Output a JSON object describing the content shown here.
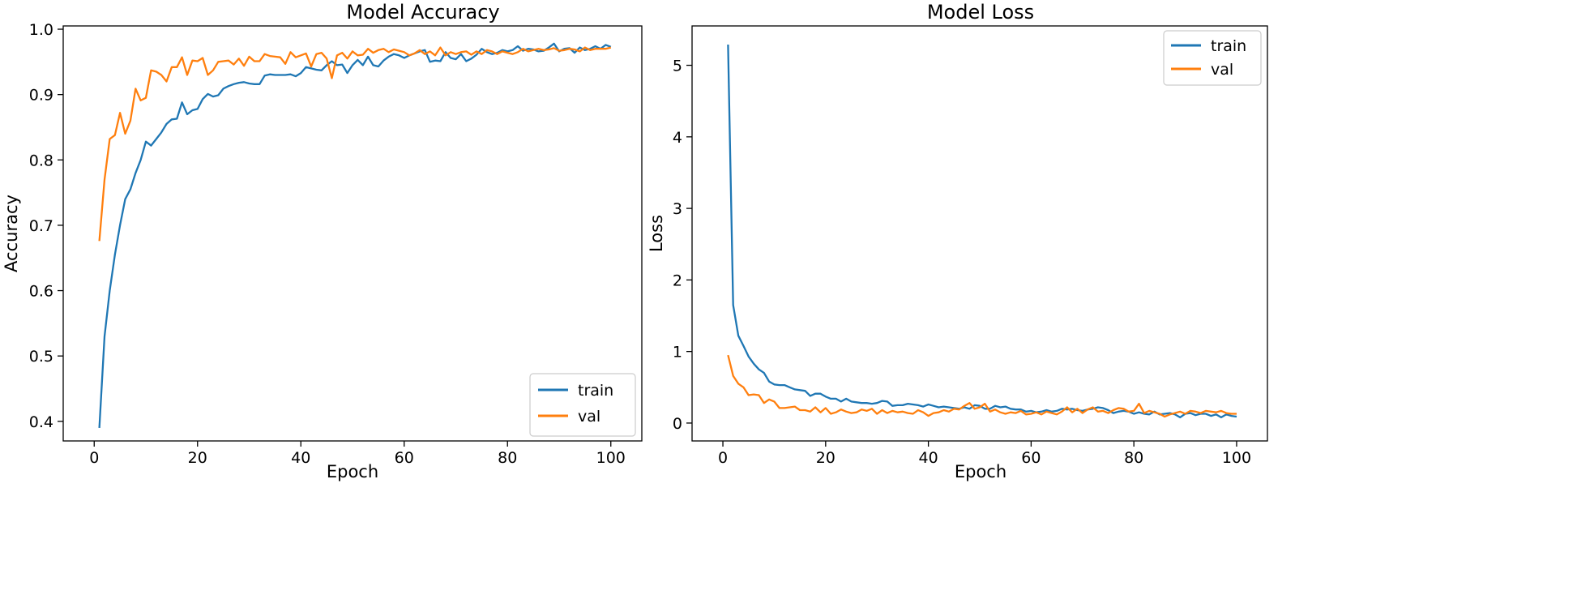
{
  "chart_data": [
    {
      "type": "line",
      "title": "Model Accuracy",
      "xlabel": "Epoch",
      "ylabel": "Accuracy",
      "xlim": [
        -6,
        106
      ],
      "ylim": [
        0.37,
        1.005
      ],
      "xticks": [
        0,
        20,
        40,
        60,
        80,
        100
      ],
      "yticks": [
        0.4,
        0.5,
        0.6,
        0.7,
        0.8,
        0.9,
        1.0
      ],
      "ytick_labels": [
        "0.4",
        "0.5",
        "0.6",
        "0.7",
        "0.8",
        "0.9",
        "1.0"
      ],
      "grid": false,
      "legend_position": "lower-right",
      "series": [
        {
          "name": "train",
          "color": "#1f77b4",
          "x": [
            1,
            2,
            3,
            4,
            5,
            6,
            7,
            8,
            9,
            10,
            11,
            12,
            13,
            14,
            15,
            16,
            17,
            18,
            19,
            20,
            21,
            22,
            23,
            24,
            25,
            26,
            27,
            28,
            29,
            30,
            31,
            32,
            33,
            34,
            35,
            36,
            37,
            38,
            39,
            40,
            41,
            42,
            43,
            44,
            45,
            46,
            47,
            48,
            49,
            50,
            51,
            52,
            53,
            54,
            55,
            56,
            57,
            58,
            59,
            60,
            61,
            62,
            63,
            64,
            65,
            66,
            67,
            68,
            69,
            70,
            71,
            72,
            73,
            74,
            75,
            76,
            77,
            78,
            79,
            80,
            81,
            82,
            83,
            84,
            85,
            86,
            87,
            88,
            89,
            90,
            91,
            92,
            93,
            94,
            95,
            96,
            97,
            98,
            99,
            100
          ],
          "values": [
            0.39,
            0.53,
            0.6,
            0.655,
            0.7,
            0.74,
            0.755,
            0.78,
            0.8,
            0.828,
            0.822,
            0.832,
            0.842,
            0.855,
            0.862,
            0.863,
            0.888,
            0.87,
            0.876,
            0.878,
            0.893,
            0.901,
            0.897,
            0.899,
            0.909,
            0.913,
            0.916,
            0.918,
            0.919,
            0.917,
            0.916,
            0.916,
            0.929,
            0.931,
            0.93,
            0.93,
            0.93,
            0.931,
            0.928,
            0.933,
            0.942,
            0.94,
            0.938,
            0.937,
            0.945,
            0.951,
            0.945,
            0.946,
            0.933,
            0.945,
            0.953,
            0.945,
            0.958,
            0.945,
            0.943,
            0.952,
            0.958,
            0.962,
            0.96,
            0.956,
            0.96,
            0.963,
            0.966,
            0.968,
            0.95,
            0.952,
            0.951,
            0.965,
            0.956,
            0.954,
            0.962,
            0.951,
            0.955,
            0.961,
            0.97,
            0.965,
            0.962,
            0.964,
            0.968,
            0.966,
            0.968,
            0.974,
            0.967,
            0.97,
            0.969,
            0.966,
            0.967,
            0.972,
            0.978,
            0.966,
            0.97,
            0.971,
            0.964,
            0.972,
            0.968,
            0.97,
            0.974,
            0.97,
            0.976,
            0.973
          ]
        },
        {
          "name": "val",
          "color": "#ff7f0e",
          "x": [
            1,
            2,
            3,
            4,
            5,
            6,
            7,
            8,
            9,
            10,
            11,
            12,
            13,
            14,
            15,
            16,
            17,
            18,
            19,
            20,
            21,
            22,
            23,
            24,
            25,
            26,
            27,
            28,
            29,
            30,
            31,
            32,
            33,
            34,
            35,
            36,
            37,
            38,
            39,
            40,
            41,
            42,
            43,
            44,
            45,
            46,
            47,
            48,
            49,
            50,
            51,
            52,
            53,
            54,
            55,
            56,
            57,
            58,
            59,
            60,
            61,
            62,
            63,
            64,
            65,
            66,
            67,
            68,
            69,
            70,
            71,
            72,
            73,
            74,
            75,
            76,
            77,
            78,
            79,
            80,
            81,
            82,
            83,
            84,
            85,
            86,
            87,
            88,
            89,
            90,
            91,
            92,
            93,
            94,
            95,
            96,
            97,
            98,
            99,
            100
          ],
          "values": [
            0.676,
            0.77,
            0.832,
            0.838,
            0.872,
            0.84,
            0.86,
            0.909,
            0.891,
            0.895,
            0.937,
            0.935,
            0.93,
            0.92,
            0.942,
            0.942,
            0.957,
            0.93,
            0.952,
            0.951,
            0.956,
            0.93,
            0.937,
            0.95,
            0.951,
            0.952,
            0.946,
            0.955,
            0.944,
            0.958,
            0.951,
            0.951,
            0.962,
            0.959,
            0.958,
            0.957,
            0.947,
            0.965,
            0.957,
            0.96,
            0.963,
            0.943,
            0.962,
            0.964,
            0.955,
            0.925,
            0.96,
            0.964,
            0.955,
            0.966,
            0.96,
            0.961,
            0.97,
            0.964,
            0.968,
            0.97,
            0.965,
            0.969,
            0.967,
            0.965,
            0.96,
            0.963,
            0.968,
            0.962,
            0.966,
            0.96,
            0.972,
            0.96,
            0.965,
            0.962,
            0.965,
            0.966,
            0.961,
            0.966,
            0.962,
            0.968,
            0.966,
            0.962,
            0.966,
            0.964,
            0.962,
            0.965,
            0.97,
            0.966,
            0.968,
            0.97,
            0.968,
            0.969,
            0.971,
            0.967,
            0.968,
            0.97,
            0.969,
            0.966,
            0.972,
            0.968,
            0.97,
            0.97,
            0.97,
            0.972
          ]
        }
      ]
    },
    {
      "type": "line",
      "title": "Model Loss",
      "xlabel": "Epoch",
      "ylabel": "Loss",
      "xlim": [
        -6,
        106
      ],
      "ylim": [
        -0.25,
        5.55
      ],
      "xticks": [
        0,
        20,
        40,
        60,
        80,
        100
      ],
      "yticks": [
        0,
        1,
        2,
        3,
        4,
        5
      ],
      "ytick_labels": [
        "0",
        "1",
        "2",
        "3",
        "4",
        "5"
      ],
      "grid": false,
      "legend_position": "upper-right",
      "series": [
        {
          "name": "train",
          "color": "#1f77b4",
          "x": [
            1,
            2,
            3,
            4,
            5,
            6,
            7,
            8,
            9,
            10,
            11,
            12,
            13,
            14,
            15,
            16,
            17,
            18,
            19,
            20,
            21,
            22,
            23,
            24,
            25,
            26,
            27,
            28,
            29,
            30,
            31,
            32,
            33,
            34,
            35,
            36,
            37,
            38,
            39,
            40,
            41,
            42,
            43,
            44,
            45,
            46,
            47,
            48,
            49,
            50,
            51,
            52,
            53,
            54,
            55,
            56,
            57,
            58,
            59,
            60,
            61,
            62,
            63,
            64,
            65,
            66,
            67,
            68,
            69,
            70,
            71,
            72,
            73,
            74,
            75,
            76,
            77,
            78,
            79,
            80,
            81,
            82,
            83,
            84,
            85,
            86,
            87,
            88,
            89,
            90,
            91,
            92,
            93,
            94,
            95,
            96,
            97,
            98,
            99,
            100
          ],
          "values": [
            5.29,
            1.65,
            1.22,
            1.08,
            0.93,
            0.83,
            0.75,
            0.7,
            0.58,
            0.54,
            0.53,
            0.53,
            0.5,
            0.47,
            0.46,
            0.45,
            0.38,
            0.41,
            0.41,
            0.37,
            0.34,
            0.34,
            0.3,
            0.34,
            0.3,
            0.29,
            0.28,
            0.28,
            0.27,
            0.28,
            0.31,
            0.3,
            0.24,
            0.25,
            0.25,
            0.27,
            0.26,
            0.25,
            0.23,
            0.26,
            0.24,
            0.22,
            0.23,
            0.22,
            0.21,
            0.2,
            0.22,
            0.2,
            0.25,
            0.24,
            0.2,
            0.2,
            0.24,
            0.22,
            0.23,
            0.2,
            0.19,
            0.19,
            0.16,
            0.17,
            0.15,
            0.16,
            0.18,
            0.16,
            0.17,
            0.2,
            0.19,
            0.2,
            0.18,
            0.17,
            0.19,
            0.2,
            0.22,
            0.21,
            0.18,
            0.14,
            0.16,
            0.17,
            0.16,
            0.13,
            0.15,
            0.13,
            0.12,
            0.16,
            0.12,
            0.13,
            0.14,
            0.12,
            0.08,
            0.13,
            0.14,
            0.11,
            0.13,
            0.13,
            0.1,
            0.12,
            0.08,
            0.12,
            0.1,
            0.09
          ]
        },
        {
          "name": "val",
          "color": "#ff7f0e",
          "x": [
            1,
            2,
            3,
            4,
            5,
            6,
            7,
            8,
            9,
            10,
            11,
            12,
            13,
            14,
            15,
            16,
            17,
            18,
            19,
            20,
            21,
            22,
            23,
            24,
            25,
            26,
            27,
            28,
            29,
            30,
            31,
            32,
            33,
            34,
            35,
            36,
            37,
            38,
            39,
            40,
            41,
            42,
            43,
            44,
            45,
            46,
            47,
            48,
            49,
            50,
            51,
            52,
            53,
            54,
            55,
            56,
            57,
            58,
            59,
            60,
            61,
            62,
            63,
            64,
            65,
            66,
            67,
            68,
            69,
            70,
            71,
            72,
            73,
            74,
            75,
            76,
            77,
            78,
            79,
            80,
            81,
            82,
            83,
            84,
            85,
            86,
            87,
            88,
            89,
            90,
            91,
            92,
            93,
            94,
            95,
            96,
            97,
            98,
            99,
            100
          ],
          "values": [
            0.95,
            0.66,
            0.55,
            0.5,
            0.39,
            0.4,
            0.39,
            0.28,
            0.33,
            0.3,
            0.21,
            0.21,
            0.22,
            0.23,
            0.18,
            0.18,
            0.16,
            0.22,
            0.15,
            0.21,
            0.13,
            0.15,
            0.19,
            0.16,
            0.14,
            0.15,
            0.19,
            0.17,
            0.2,
            0.13,
            0.18,
            0.14,
            0.17,
            0.15,
            0.16,
            0.14,
            0.13,
            0.18,
            0.15,
            0.1,
            0.14,
            0.15,
            0.18,
            0.16,
            0.2,
            0.19,
            0.24,
            0.28,
            0.2,
            0.22,
            0.27,
            0.16,
            0.19,
            0.15,
            0.13,
            0.15,
            0.14,
            0.17,
            0.12,
            0.13,
            0.15,
            0.12,
            0.16,
            0.14,
            0.12,
            0.16,
            0.22,
            0.15,
            0.2,
            0.14,
            0.19,
            0.22,
            0.16,
            0.17,
            0.14,
            0.18,
            0.21,
            0.2,
            0.16,
            0.17,
            0.27,
            0.14,
            0.17,
            0.15,
            0.13,
            0.09,
            0.12,
            0.14,
            0.16,
            0.13,
            0.17,
            0.16,
            0.14,
            0.17,
            0.16,
            0.15,
            0.17,
            0.14,
            0.13,
            0.13
          ]
        }
      ]
    }
  ]
}
